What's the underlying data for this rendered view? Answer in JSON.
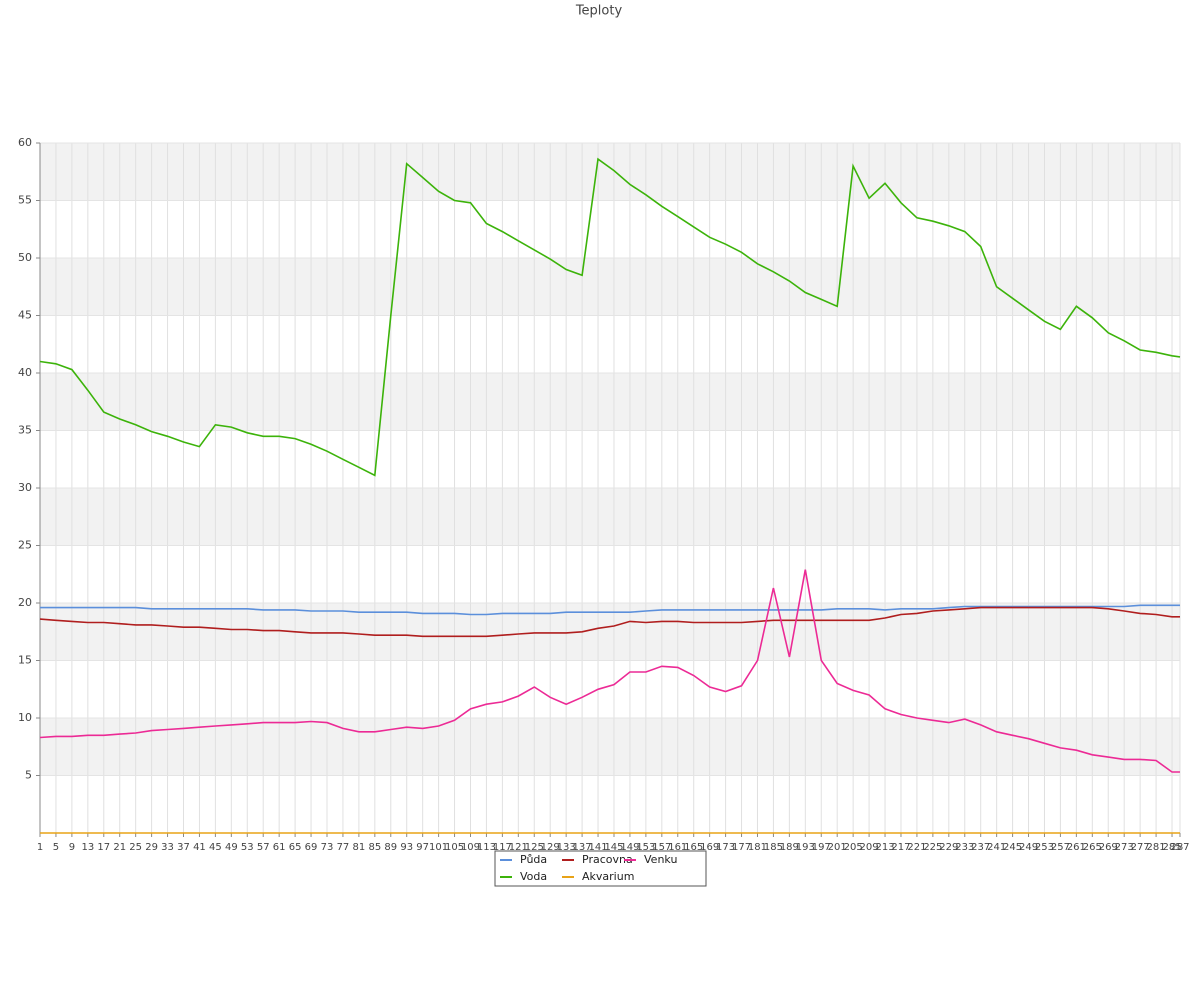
{
  "chart_data": {
    "type": "line",
    "title": "Teploty",
    "x": [
      1,
      5,
      9,
      13,
      17,
      21,
      25,
      29,
      33,
      37,
      41,
      45,
      49,
      53,
      57,
      61,
      65,
      69,
      73,
      77,
      81,
      85,
      89,
      93,
      97,
      101,
      105,
      109,
      113,
      117,
      121,
      125,
      129,
      133,
      137,
      141,
      145,
      149,
      153,
      157,
      161,
      165,
      169,
      173,
      177,
      181,
      185,
      189,
      193,
      197,
      201,
      205,
      209,
      213,
      217,
      221,
      225,
      229,
      233,
      237,
      241,
      245,
      249,
      253,
      257,
      261,
      265,
      269,
      273,
      277,
      281,
      285,
      287
    ],
    "xlim": [
      1,
      287
    ],
    "ylim": [
      0,
      60
    ],
    "yticks": [
      5,
      10,
      15,
      20,
      25,
      30,
      35,
      40,
      45,
      50,
      55,
      60
    ],
    "grid": true,
    "series": [
      {
        "name": "Půda",
        "color": "#5b8fdb",
        "values": [
          19.6,
          19.6,
          19.6,
          19.6,
          19.6,
          19.6,
          19.6,
          19.5,
          19.5,
          19.5,
          19.5,
          19.5,
          19.5,
          19.5,
          19.4,
          19.4,
          19.4,
          19.3,
          19.3,
          19.3,
          19.2,
          19.2,
          19.2,
          19.2,
          19.1,
          19.1,
          19.1,
          19.0,
          19.0,
          19.1,
          19.1,
          19.1,
          19.1,
          19.2,
          19.2,
          19.2,
          19.2,
          19.2,
          19.3,
          19.4,
          19.4,
          19.4,
          19.4,
          19.4,
          19.4,
          19.4,
          19.4,
          19.4,
          19.4,
          19.4,
          19.5,
          19.5,
          19.5,
          19.4,
          19.5,
          19.5,
          19.5,
          19.6,
          19.7,
          19.7,
          19.7,
          19.7,
          19.7,
          19.7,
          19.7,
          19.7,
          19.7,
          19.7,
          19.7,
          19.8,
          19.8,
          19.8,
          19.8
        ]
      },
      {
        "name": "Voda",
        "color": "#3cb30a",
        "values": [
          41.0,
          40.8,
          40.3,
          38.5,
          36.6,
          36.0,
          35.5,
          34.9,
          34.5,
          34.0,
          33.6,
          35.5,
          35.3,
          34.8,
          34.5,
          34.5,
          34.3,
          33.8,
          33.2,
          32.5,
          31.8,
          31.1,
          45,
          58.2,
          57,
          55.8,
          55,
          54.8,
          53.0,
          52.3,
          51.5,
          50.7,
          49.9,
          49.0,
          48.5,
          58.6,
          57.6,
          56.4,
          55.5,
          54.5,
          53.6,
          52.7,
          51.8,
          51.2,
          50.5,
          49.5,
          48.8,
          48.0,
          47.0,
          46.4,
          45.8,
          58,
          55.2,
          56.5,
          54.8,
          53.5,
          53.2,
          52.8,
          52.3,
          51,
          47.5,
          46.5,
          45.5,
          44.5,
          43.8,
          45.8,
          44.8,
          43.5,
          42.8,
          42,
          41.8,
          41.5,
          41.4
        ]
      },
      {
        "name": "Pracovna",
        "color": "#b01e1e",
        "values": [
          18.6,
          18.5,
          18.4,
          18.3,
          18.3,
          18.2,
          18.1,
          18.1,
          18.0,
          17.9,
          17.9,
          17.8,
          17.7,
          17.7,
          17.6,
          17.6,
          17.5,
          17.4,
          17.4,
          17.4,
          17.3,
          17.2,
          17.2,
          17.2,
          17.1,
          17.1,
          17.1,
          17.1,
          17.1,
          17.2,
          17.3,
          17.4,
          17.4,
          17.4,
          17.5,
          17.8,
          18.0,
          18.4,
          18.3,
          18.4,
          18.4,
          18.3,
          18.3,
          18.3,
          18.3,
          18.4,
          18.5,
          18.5,
          18.5,
          18.5,
          18.5,
          18.5,
          18.5,
          18.7,
          19.0,
          19.1,
          19.3,
          19.4,
          19.5,
          19.6,
          19.6,
          19.6,
          19.6,
          19.6,
          19.6,
          19.6,
          19.6,
          19.5,
          19.3,
          19.1,
          19.0,
          18.8,
          18.8
        ]
      },
      {
        "name": "Akvarium",
        "color": "#e8a317",
        "values": [
          0,
          0,
          0,
          0,
          0,
          0,
          0,
          0,
          0,
          0,
          0,
          0,
          0,
          0,
          0,
          0,
          0,
          0,
          0,
          0,
          0,
          0,
          0,
          0,
          0,
          0,
          0,
          0,
          0,
          0,
          0,
          0,
          0,
          0,
          0,
          0,
          0,
          0,
          0,
          0,
          0,
          0,
          0,
          0,
          0,
          0,
          0,
          0,
          0,
          0,
          0,
          0,
          0,
          0,
          0,
          0,
          0,
          0,
          0,
          0,
          0,
          0,
          0,
          0,
          0,
          0,
          0,
          0,
          0,
          0,
          0,
          0,
          0
        ]
      },
      {
        "name": "Venku",
        "color": "#ec2a95",
        "values": [
          8.3,
          8.4,
          8.4,
          8.5,
          8.5,
          8.6,
          8.7,
          8.9,
          9.0,
          9.1,
          9.2,
          9.3,
          9.4,
          9.5,
          9.6,
          9.6,
          9.6,
          9.7,
          9.6,
          9.1,
          8.8,
          8.8,
          9.0,
          9.2,
          9.1,
          9.3,
          9.8,
          10.8,
          11.2,
          11.4,
          11.9,
          12.7,
          11.8,
          11.2,
          11.8,
          12.5,
          12.9,
          14.0,
          14.0,
          14.5,
          14.4,
          13.7,
          12.7,
          12.3,
          12.8,
          15.0,
          21.3,
          15.3,
          22.9,
          15.0,
          13.0,
          12.4,
          12.0,
          10.8,
          10.3,
          10.0,
          9.8,
          9.6,
          9.9,
          9.4,
          8.8,
          8.5,
          8.2,
          7.8,
          7.4,
          7.2,
          6.8,
          6.6,
          6.4,
          6.4,
          6.3,
          5.3,
          5.3
        ]
      }
    ]
  }
}
